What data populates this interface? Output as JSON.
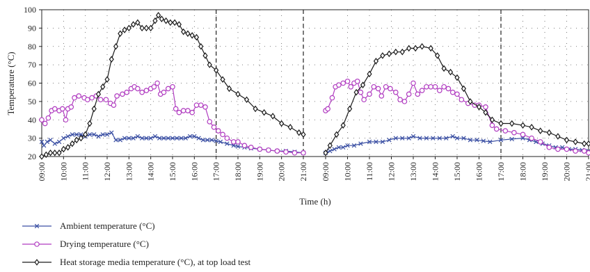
{
  "chart_data": {
    "type": "line",
    "ylabel": "Temperature (°C)",
    "xlabel": "Time (h)",
    "ylim": [
      20,
      100
    ],
    "yticks": [
      20,
      30,
      40,
      50,
      60,
      70,
      80,
      90,
      100
    ],
    "grid": "dotted",
    "day1_ticks": [
      "09:00",
      "10:00",
      "11:00",
      "12:00",
      "13:00",
      "14:00",
      "15:00",
      "16:00",
      "17:00",
      "18:00",
      "19:00",
      "20:00",
      "21:00"
    ],
    "day2_ticks": [
      "09:00",
      "10:00",
      "11:00",
      "12:00",
      "13:00",
      "14:00",
      "15:00",
      "16:00",
      "17:00",
      "18:00",
      "19:00",
      "20:00",
      "21:00"
    ],
    "dashed_markers": [
      {
        "day": 1,
        "hour": 17
      },
      {
        "day": 1,
        "hour": 21
      },
      {
        "day": 2,
        "hour": 17
      }
    ],
    "colors": {
      "ambient": "#3a4fa3",
      "drying": "#b03bc0",
      "storage": "#1a1a1a"
    },
    "series": [
      {
        "name": "Ambient temperature (°C)",
        "key": "ambient",
        "marker": "x",
        "day1": [
          [
            9.0,
            28
          ],
          [
            9.1,
            26
          ],
          [
            9.25,
            28
          ],
          [
            9.4,
            29
          ],
          [
            9.6,
            27
          ],
          [
            9.8,
            28
          ],
          [
            10.0,
            30
          ],
          [
            10.2,
            31
          ],
          [
            10.4,
            32
          ],
          [
            10.6,
            32
          ],
          [
            10.8,
            32
          ],
          [
            11.0,
            31
          ],
          [
            11.2,
            32
          ],
          [
            11.4,
            32
          ],
          [
            11.6,
            31
          ],
          [
            11.8,
            32
          ],
          [
            12.0,
            32
          ],
          [
            12.2,
            33
          ],
          [
            12.4,
            29
          ],
          [
            12.6,
            29
          ],
          [
            12.8,
            30
          ],
          [
            13.0,
            30
          ],
          [
            13.2,
            30
          ],
          [
            13.4,
            31
          ],
          [
            13.6,
            30
          ],
          [
            13.8,
            30
          ],
          [
            14.0,
            30
          ],
          [
            14.2,
            31
          ],
          [
            14.4,
            30
          ],
          [
            14.6,
            30
          ],
          [
            14.8,
            30
          ],
          [
            15.0,
            30
          ],
          [
            15.2,
            30
          ],
          [
            15.4,
            30
          ],
          [
            15.6,
            30
          ],
          [
            15.8,
            31
          ],
          [
            16.0,
            31
          ],
          [
            16.2,
            30
          ],
          [
            16.4,
            29
          ],
          [
            16.6,
            29
          ],
          [
            16.8,
            29
          ],
          [
            17.0,
            28.5
          ],
          [
            17.2,
            28
          ],
          [
            17.5,
            27
          ],
          [
            17.8,
            26
          ],
          [
            18.0,
            25.5
          ],
          [
            18.3,
            25
          ],
          [
            18.6,
            24.5
          ],
          [
            19.0,
            24
          ],
          [
            19.4,
            23.5
          ],
          [
            19.8,
            23
          ],
          [
            20.2,
            23
          ],
          [
            20.6,
            22.5
          ],
          [
            21.0,
            22
          ]
        ],
        "day2": [
          [
            9.0,
            22
          ],
          [
            9.2,
            23
          ],
          [
            9.4,
            24
          ],
          [
            9.6,
            25
          ],
          [
            9.8,
            25
          ],
          [
            10.0,
            26
          ],
          [
            10.3,
            26
          ],
          [
            10.6,
            27
          ],
          [
            11.0,
            28
          ],
          [
            11.3,
            28
          ],
          [
            11.6,
            28
          ],
          [
            11.9,
            29
          ],
          [
            12.2,
            30
          ],
          [
            12.5,
            30
          ],
          [
            12.8,
            30
          ],
          [
            13.0,
            31
          ],
          [
            13.3,
            30
          ],
          [
            13.6,
            30
          ],
          [
            13.9,
            30
          ],
          [
            14.2,
            30
          ],
          [
            14.5,
            30
          ],
          [
            14.8,
            31
          ],
          [
            15.0,
            30
          ],
          [
            15.3,
            30
          ],
          [
            15.6,
            29
          ],
          [
            15.9,
            29
          ],
          [
            16.2,
            28.5
          ],
          [
            16.5,
            28
          ],
          [
            17.0,
            29
          ],
          [
            17.5,
            29.5
          ],
          [
            18.0,
            30
          ],
          [
            18.3,
            29
          ],
          [
            18.6,
            28
          ],
          [
            18.9,
            27
          ],
          [
            19.2,
            26
          ],
          [
            19.5,
            25
          ],
          [
            19.8,
            25
          ],
          [
            20.1,
            24
          ],
          [
            20.4,
            24
          ],
          [
            20.7,
            23.5
          ],
          [
            21.0,
            23
          ]
        ]
      },
      {
        "name": "Drying temperature (°C)",
        "key": "drying",
        "marker": "o",
        "day1": [
          [
            9.0,
            40
          ],
          [
            9.15,
            38
          ],
          [
            9.3,
            41
          ],
          [
            9.45,
            45
          ],
          [
            9.6,
            46
          ],
          [
            9.8,
            45
          ],
          [
            9.95,
            46
          ],
          [
            10.1,
            40
          ],
          [
            10.2,
            46
          ],
          [
            10.35,
            47
          ],
          [
            10.5,
            52
          ],
          [
            10.7,
            53
          ],
          [
            10.95,
            52
          ],
          [
            11.1,
            51
          ],
          [
            11.3,
            52
          ],
          [
            11.5,
            53
          ],
          [
            11.7,
            51
          ],
          [
            11.95,
            51
          ],
          [
            12.15,
            49
          ],
          [
            12.3,
            48
          ],
          [
            12.45,
            53
          ],
          [
            12.7,
            54
          ],
          [
            12.9,
            55
          ],
          [
            13.1,
            57
          ],
          [
            13.25,
            58
          ],
          [
            13.4,
            57
          ],
          [
            13.6,
            55
          ],
          [
            13.8,
            56
          ],
          [
            14.0,
            57
          ],
          [
            14.15,
            58
          ],
          [
            14.3,
            60
          ],
          [
            14.45,
            54
          ],
          [
            14.6,
            55
          ],
          [
            14.8,
            57
          ],
          [
            15.0,
            58
          ],
          [
            15.15,
            46
          ],
          [
            15.3,
            44
          ],
          [
            15.5,
            45
          ],
          [
            15.7,
            45
          ],
          [
            15.9,
            44
          ],
          [
            16.1,
            48
          ],
          [
            16.3,
            48
          ],
          [
            16.5,
            47
          ],
          [
            16.7,
            39
          ],
          [
            16.9,
            36
          ],
          [
            17.1,
            34
          ],
          [
            17.3,
            32
          ],
          [
            17.5,
            30
          ],
          [
            17.8,
            28
          ],
          [
            18.0,
            28
          ],
          [
            18.3,
            26
          ],
          [
            18.6,
            25
          ],
          [
            19.0,
            24
          ],
          [
            19.4,
            23.5
          ],
          [
            19.8,
            23
          ],
          [
            20.2,
            22.5
          ],
          [
            20.6,
            22
          ],
          [
            21.0,
            22
          ]
        ],
        "day2": [
          [
            9.0,
            45
          ],
          [
            9.1,
            46
          ],
          [
            9.3,
            52
          ],
          [
            9.45,
            58
          ],
          [
            9.6,
            59
          ],
          [
            9.8,
            60
          ],
          [
            10.0,
            61
          ],
          [
            10.15,
            58
          ],
          [
            10.3,
            60
          ],
          [
            10.45,
            61
          ],
          [
            10.6,
            55
          ],
          [
            10.75,
            51
          ],
          [
            11.0,
            54
          ],
          [
            11.2,
            58
          ],
          [
            11.4,
            57
          ],
          [
            11.55,
            53
          ],
          [
            11.75,
            58
          ],
          [
            11.95,
            57
          ],
          [
            12.2,
            55
          ],
          [
            12.4,
            51
          ],
          [
            12.6,
            50
          ],
          [
            12.8,
            54
          ],
          [
            13.0,
            60
          ],
          [
            13.2,
            54
          ],
          [
            13.4,
            56
          ],
          [
            13.6,
            58
          ],
          [
            13.8,
            58
          ],
          [
            14.0,
            58
          ],
          [
            14.2,
            56
          ],
          [
            14.4,
            58
          ],
          [
            14.6,
            57
          ],
          [
            14.8,
            55
          ],
          [
            15.0,
            54
          ],
          [
            15.2,
            51
          ],
          [
            15.5,
            49
          ],
          [
            15.8,
            48
          ],
          [
            16.0,
            48
          ],
          [
            16.3,
            47
          ],
          [
            16.6,
            37
          ],
          [
            16.8,
            35
          ],
          [
            17.2,
            34
          ],
          [
            17.6,
            33
          ],
          [
            18.0,
            32
          ],
          [
            18.4,
            30
          ],
          [
            18.8,
            28
          ],
          [
            19.2,
            25
          ],
          [
            19.6,
            24
          ],
          [
            20.0,
            24
          ],
          [
            20.4,
            23
          ],
          [
            20.8,
            23
          ],
          [
            21.0,
            22
          ]
        ]
      },
      {
        "name": "Heat storage media temperature (°C), at top load test",
        "key": "storage",
        "marker": "diamond",
        "day1": [
          [
            9.0,
            20
          ],
          [
            9.2,
            21
          ],
          [
            9.4,
            22
          ],
          [
            9.6,
            22
          ],
          [
            9.8,
            22
          ],
          [
            10.0,
            24
          ],
          [
            10.2,
            25
          ],
          [
            10.4,
            27
          ],
          [
            10.6,
            29
          ],
          [
            10.8,
            30
          ],
          [
            11.0,
            32
          ],
          [
            11.2,
            38
          ],
          [
            11.4,
            46
          ],
          [
            11.6,
            54
          ],
          [
            11.8,
            58
          ],
          [
            12.0,
            62
          ],
          [
            12.2,
            73
          ],
          [
            12.4,
            80
          ],
          [
            12.6,
            87
          ],
          [
            12.8,
            89
          ],
          [
            13.0,
            90
          ],
          [
            13.2,
            92
          ],
          [
            13.4,
            93
          ],
          [
            13.6,
            90
          ],
          [
            13.8,
            90
          ],
          [
            14.0,
            90
          ],
          [
            14.2,
            94
          ],
          [
            14.35,
            97
          ],
          [
            14.5,
            95
          ],
          [
            14.7,
            94
          ],
          [
            14.9,
            93
          ],
          [
            15.1,
            93
          ],
          [
            15.3,
            92
          ],
          [
            15.5,
            88
          ],
          [
            15.7,
            87
          ],
          [
            15.9,
            86
          ],
          [
            16.1,
            85
          ],
          [
            16.3,
            80
          ],
          [
            16.5,
            75
          ],
          [
            16.7,
            70
          ],
          [
            17.0,
            67
          ],
          [
            17.3,
            62
          ],
          [
            17.6,
            57
          ],
          [
            18.0,
            54
          ],
          [
            18.4,
            51
          ],
          [
            18.8,
            46
          ],
          [
            19.2,
            44
          ],
          [
            19.6,
            42
          ],
          [
            20.0,
            38
          ],
          [
            20.4,
            36
          ],
          [
            20.8,
            33
          ],
          [
            21.0,
            32
          ]
        ],
        "day2": [
          [
            9.0,
            22
          ],
          [
            9.2,
            26
          ],
          [
            9.5,
            32
          ],
          [
            9.8,
            37
          ],
          [
            10.1,
            46
          ],
          [
            10.4,
            55
          ],
          [
            10.7,
            59
          ],
          [
            11.0,
            65
          ],
          [
            11.3,
            72
          ],
          [
            11.6,
            75
          ],
          [
            11.9,
            76
          ],
          [
            12.2,
            77
          ],
          [
            12.5,
            77
          ],
          [
            12.8,
            79
          ],
          [
            13.1,
            79
          ],
          [
            13.4,
            80
          ],
          [
            13.8,
            79
          ],
          [
            14.1,
            75
          ],
          [
            14.4,
            68
          ],
          [
            14.7,
            66
          ],
          [
            15.0,
            63
          ],
          [
            15.3,
            57
          ],
          [
            15.6,
            50
          ],
          [
            16.0,
            47
          ],
          [
            16.3,
            44
          ],
          [
            16.6,
            40
          ],
          [
            17.0,
            38
          ],
          [
            17.5,
            38
          ],
          [
            18.0,
            37
          ],
          [
            18.4,
            36
          ],
          [
            18.8,
            34
          ],
          [
            19.2,
            33
          ],
          [
            19.6,
            31
          ],
          [
            20.0,
            29
          ],
          [
            20.4,
            28
          ],
          [
            20.8,
            27
          ],
          [
            21.0,
            27
          ]
        ]
      }
    ]
  }
}
